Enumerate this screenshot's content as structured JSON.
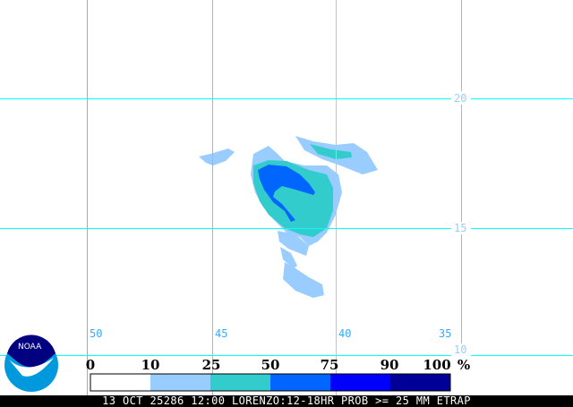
{
  "map": {
    "latitude_labels": [
      "20",
      "15",
      "10"
    ],
    "longitude_labels": [
      "50",
      "45",
      "40",
      "35"
    ],
    "grid_color": "#00ffff",
    "probability_colors": {
      "10-25": "#99ccff",
      "25-50": "#33cccc",
      "50-75": "#0066ff",
      "75-90": "#0000ff",
      "90-100": "#000099"
    }
  },
  "colorbar": {
    "labels": [
      "0",
      "10",
      "25",
      "50",
      "75",
      "90",
      "100"
    ],
    "unit": "%",
    "colors": [
      "#ffffff",
      "#99ccff",
      "#33cccc",
      "#0066ff",
      "#0000ff",
      "#000099"
    ]
  },
  "logo": {
    "text": "NOAA"
  },
  "title": "13 OCT 25286 12:00 LORENZO:12-18HR PROB >= 25 MM ETRAP"
}
